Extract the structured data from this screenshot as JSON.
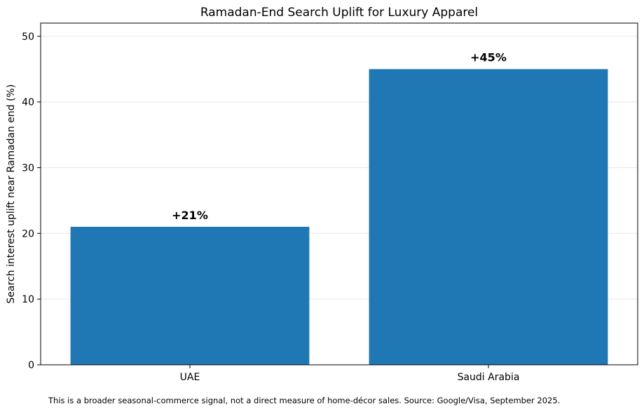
{
  "chart_data": {
    "type": "bar",
    "title": "Ramadan-End Search Uplift for Luxury Apparel",
    "xlabel": "",
    "ylabel": "Search interest uplift near Ramadan end (%)",
    "categories": [
      "UAE",
      "Saudi Arabia"
    ],
    "values": [
      21,
      45
    ],
    "data_labels": [
      "+21%",
      "+45%"
    ],
    "ylim": [
      0,
      52
    ],
    "yticks": [
      0,
      10,
      20,
      30,
      40,
      50
    ],
    "grid": "horizontal",
    "legend": "none",
    "bar_color": "#1f77b4",
    "grid_color": "#e8e8e8"
  },
  "footnote": "This is a broader seasonal-commerce signal, not a direct measure of home-décor sales. Source: Google/Visa, September 2025."
}
